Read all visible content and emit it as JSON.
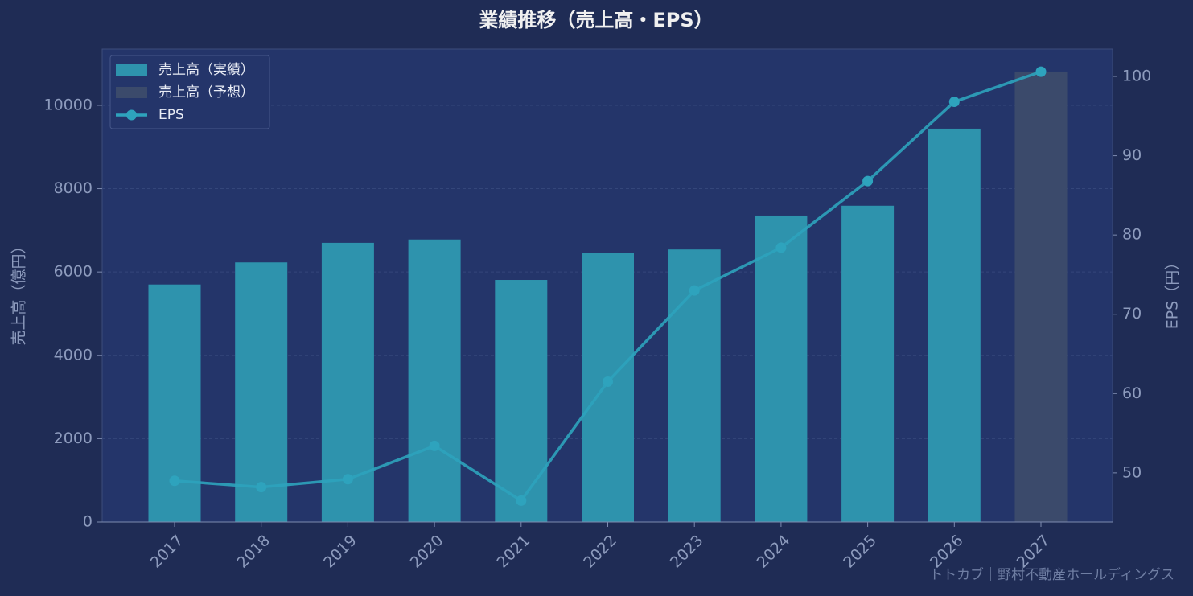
{
  "chart_data": {
    "type": "bar_line",
    "title": "業績推移（売上高・EPS）",
    "y_label": "売上高（億円）",
    "y2_label": "EPS（円）",
    "watermark": "トトカブ｜野村不動産ホールディングス",
    "categories": [
      "2017",
      "2018",
      "2019",
      "2020",
      "2021",
      "2022",
      "2023",
      "2024",
      "2025",
      "2026",
      "2027"
    ],
    "series": [
      {
        "name": "売上高（実績）",
        "type": "bar",
        "color": "#2e93ad",
        "values": [
          5700,
          6230,
          6700,
          6780,
          5810,
          6450,
          6540,
          7355,
          7590,
          9440,
          null
        ]
      },
      {
        "name": "売上高（予想）",
        "type": "bar",
        "color": "#3b4a6b",
        "values": [
          null,
          null,
          null,
          null,
          null,
          null,
          null,
          null,
          null,
          null,
          10810
        ]
      },
      {
        "name": "EPS",
        "type": "line",
        "axis": "y2",
        "color": "#2ea3bd",
        "values": [
          49.0,
          48.2,
          49.2,
          53.4,
          46.5,
          61.5,
          73.0,
          78.4,
          86.8,
          96.8,
          100.6
        ]
      }
    ],
    "ylim": [
      0,
      11350
    ],
    "yticks": [
      0,
      2000,
      4000,
      6000,
      8000,
      10000
    ],
    "y2lim": [
      43.8,
      103.45
    ],
    "y2ticks": [
      50,
      60,
      70,
      80,
      90,
      100
    ],
    "grid": true,
    "legend": "upper left"
  }
}
